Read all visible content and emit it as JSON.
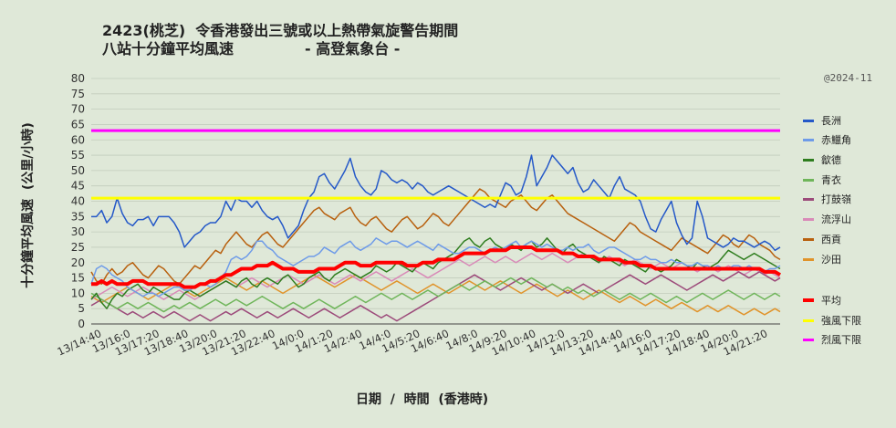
{
  "title_line1": "2423(桃芝)  令香港發出三號或以上熱帶氣旋警告期間",
  "title_line2": "八站十分鐘平均風速              - 高登氣象台 -",
  "watermark": "@2024-11",
  "chart_data": {
    "type": "line",
    "xlabel": "日期  /  時間  (香港時)",
    "ylabel": "十分鐘平均風速  (公里/小時)",
    "ylim": [
      0,
      80
    ],
    "yticks": [
      0,
      5,
      10,
      15,
      20,
      25,
      30,
      35,
      40,
      45,
      50,
      55,
      60,
      65,
      70,
      75,
      80
    ],
    "grid": true,
    "legend": "right",
    "x_tick_labels": [
      "13/14:40",
      "13/16:0",
      "13/17:20",
      "13/18:40",
      "13/20:0",
      "13/21:20",
      "13/22:40",
      "14/0:0",
      "14/1:20",
      "14/2:40",
      "14/4:0",
      "14/5:20",
      "14/6:40",
      "14/8:0",
      "14/9:20",
      "14/10:40",
      "14/12:0",
      "14/13:20",
      "14/14:40",
      "14/16:0",
      "14/17:20",
      "14/18:40",
      "14/20:0",
      "14/21:20"
    ],
    "series": [
      {
        "name": "長洲",
        "color": "#2458c8",
        "values": [
          35,
          35,
          37,
          33,
          35,
          41,
          36,
          33,
          32,
          34,
          34,
          35,
          32,
          35,
          35,
          35,
          33,
          30,
          25,
          27,
          29,
          30,
          32,
          33,
          33,
          35,
          40,
          37,
          41,
          40,
          40,
          38,
          40,
          37,
          35,
          34,
          35,
          32,
          28,
          30,
          32,
          37,
          41,
          43,
          48,
          49,
          46,
          44,
          47,
          50,
          54,
          48,
          45,
          43,
          42,
          44,
          50,
          49,
          47,
          46,
          47,
          46,
          44,
          46,
          45,
          43,
          42,
          43,
          44,
          45,
          44,
          43,
          42,
          41,
          40,
          39,
          38,
          39,
          38,
          42,
          46,
          45,
          42,
          43,
          48,
          55,
          45,
          48,
          51,
          55,
          53,
          51,
          49,
          51,
          46,
          43,
          44,
          47,
          45,
          43,
          41,
          45,
          48,
          44,
          43,
          42,
          40,
          35,
          31,
          30,
          34,
          37,
          40,
          33,
          29,
          26,
          28,
          40,
          35,
          28,
          27,
          26,
          25,
          26,
          28,
          27,
          27,
          26,
          25,
          26,
          27,
          26,
          24,
          25
        ]
      },
      {
        "name": "赤鱲角",
        "color": "#6e9be8",
        "values": [
          13,
          18,
          19,
          18,
          16,
          15,
          14,
          12,
          11,
          10,
          9,
          10,
          10,
          9,
          10,
          11,
          12,
          12,
          11,
          11,
          12,
          13,
          13,
          12,
          13,
          15,
          17,
          21,
          22,
          21,
          22,
          24,
          27,
          27,
          25,
          24,
          22,
          21,
          20,
          19,
          20,
          21,
          22,
          22,
          23,
          25,
          24,
          23,
          25,
          26,
          27,
          25,
          24,
          25,
          26,
          28,
          27,
          26,
          27,
          27,
          26,
          25,
          26,
          27,
          26,
          25,
          24,
          26,
          25,
          24,
          23,
          23,
          24,
          25,
          25,
          24,
          23,
          24,
          25,
          24,
          25,
          26,
          27,
          25,
          26,
          27,
          26,
          25,
          26,
          25,
          24,
          24,
          25,
          24,
          25,
          25,
          26,
          24,
          23,
          24,
          25,
          25,
          24,
          23,
          22,
          21,
          21,
          22,
          21,
          21,
          20,
          20,
          21,
          20,
          20,
          19,
          19,
          20,
          19,
          19,
          18,
          19,
          18,
          18,
          19,
          19,
          18,
          19,
          18,
          18,
          17,
          18,
          18,
          19
        ]
      },
      {
        "name": "歙德",
        "color": "#2e7d1e",
        "values": [
          8,
          10,
          7,
          5,
          8,
          10,
          9,
          11,
          12,
          13,
          11,
          10,
          12,
          11,
          10,
          9,
          8,
          8,
          10,
          11,
          10,
          9,
          10,
          11,
          12,
          13,
          14,
          13,
          12,
          14,
          15,
          13,
          12,
          14,
          15,
          14,
          13,
          15,
          16,
          14,
          12,
          13,
          15,
          16,
          17,
          15,
          14,
          16,
          17,
          18,
          17,
          16,
          15,
          16,
          17,
          19,
          18,
          17,
          18,
          20,
          19,
          18,
          17,
          19,
          20,
          19,
          18,
          20,
          21,
          22,
          23,
          25,
          27,
          28,
          26,
          25,
          27,
          28,
          26,
          25,
          24,
          26,
          25,
          24,
          26,
          27,
          25,
          26,
          28,
          26,
          24,
          23,
          25,
          26,
          24,
          23,
          22,
          21,
          20,
          22,
          21,
          20,
          19,
          21,
          20,
          19,
          18,
          17,
          19,
          18,
          17,
          18,
          19,
          21,
          20,
          19,
          18,
          20,
          19,
          18,
          19,
          20,
          22,
          24,
          23,
          22,
          21,
          22,
          23,
          22,
          21,
          20,
          19,
          18
        ]
      },
      {
        "name": "青衣",
        "color": "#6fb55a",
        "values": [
          10,
          9,
          8,
          7,
          6,
          5,
          6,
          7,
          6,
          5,
          6,
          7,
          6,
          5,
          4,
          5,
          6,
          5,
          6,
          7,
          6,
          5,
          6,
          7,
          8,
          7,
          6,
          7,
          8,
          7,
          6,
          7,
          8,
          9,
          8,
          7,
          6,
          5,
          6,
          7,
          6,
          5,
          6,
          7,
          8,
          7,
          6,
          5,
          6,
          7,
          8,
          9,
          8,
          7,
          8,
          9,
          10,
          9,
          8,
          9,
          10,
          9,
          8,
          9,
          10,
          11,
          10,
          9,
          10,
          11,
          12,
          13,
          12,
          11,
          12,
          13,
          14,
          13,
          12,
          13,
          14,
          15,
          14,
          13,
          14,
          15,
          14,
          13,
          12,
          13,
          12,
          11,
          12,
          11,
          10,
          11,
          10,
          9,
          10,
          11,
          10,
          9,
          8,
          9,
          10,
          9,
          8,
          9,
          10,
          9,
          8,
          7,
          8,
          9,
          8,
          7,
          8,
          9,
          10,
          9,
          8,
          9,
          10,
          11,
          10,
          9,
          8,
          9,
          10,
          9,
          8,
          9,
          10,
          9
        ]
      },
      {
        "name": "打鼓嶺",
        "color": "#9c4a7a",
        "values": [
          6,
          7,
          8,
          7,
          6,
          5,
          4,
          3,
          4,
          3,
          2,
          3,
          4,
          3,
          2,
          3,
          4,
          3,
          2,
          1,
          2,
          3,
          2,
          1,
          2,
          3,
          4,
          3,
          4,
          5,
          4,
          3,
          2,
          3,
          4,
          3,
          2,
          3,
          4,
          5,
          4,
          3,
          2,
          3,
          4,
          5,
          4,
          3,
          2,
          3,
          4,
          5,
          6,
          5,
          4,
          3,
          2,
          3,
          2,
          1,
          2,
          3,
          4,
          5,
          6,
          7,
          8,
          9,
          10,
          11,
          12,
          13,
          14,
          15,
          16,
          15,
          14,
          13,
          12,
          11,
          12,
          13,
          14,
          15,
          14,
          13,
          12,
          11,
          12,
          13,
          12,
          11,
          10,
          11,
          12,
          13,
          12,
          11,
          10,
          11,
          12,
          13,
          14,
          15,
          16,
          15,
          14,
          13,
          14,
          15,
          16,
          15,
          14,
          13,
          12,
          11,
          12,
          13,
          14,
          15,
          16,
          15,
          14,
          15,
          16,
          17,
          16,
          15,
          16,
          17,
          16,
          15,
          14,
          15
        ]
      },
      {
        "name": "流浮山",
        "color": "#d98ab8",
        "values": [
          8,
          9,
          10,
          11,
          12,
          11,
          10,
          9,
          10,
          11,
          12,
          11,
          10,
          9,
          8,
          9,
          10,
          11,
          10,
          9,
          8,
          9,
          10,
          11,
          12,
          13,
          14,
          13,
          12,
          13,
          14,
          15,
          14,
          13,
          12,
          13,
          14,
          15,
          16,
          15,
          14,
          13,
          14,
          15,
          16,
          15,
          14,
          13,
          14,
          15,
          16,
          15,
          14,
          15,
          16,
          17,
          16,
          15,
          14,
          15,
          16,
          17,
          18,
          17,
          16,
          15,
          16,
          17,
          18,
          19,
          20,
          21,
          20,
          19,
          20,
          21,
          22,
          21,
          20,
          21,
          22,
          21,
          20,
          21,
          22,
          23,
          22,
          21,
          22,
          23,
          22,
          21,
          20,
          21,
          22,
          23,
          22,
          21,
          20,
          21,
          22,
          21,
          20,
          19,
          20,
          21,
          20,
          19,
          18,
          19,
          20,
          19,
          18,
          19,
          20,
          19,
          18,
          17,
          18,
          19,
          18,
          17,
          18,
          19,
          18,
          17,
          16,
          17,
          18,
          17,
          16,
          17,
          16,
          15
        ]
      },
      {
        "name": "西貢",
        "color": "#b8600e",
        "values": [
          17,
          14,
          13,
          16,
          18,
          16,
          17,
          19,
          20,
          18,
          16,
          15,
          17,
          19,
          18,
          16,
          14,
          13,
          15,
          17,
          19,
          18,
          20,
          22,
          24,
          23,
          26,
          28,
          30,
          28,
          26,
          25,
          27,
          29,
          30,
          28,
          26,
          25,
          27,
          29,
          31,
          33,
          35,
          37,
          38,
          36,
          35,
          34,
          36,
          37,
          38,
          35,
          33,
          32,
          34,
          35,
          33,
          31,
          30,
          32,
          34,
          35,
          33,
          31,
          32,
          34,
          36,
          35,
          33,
          32,
          34,
          36,
          38,
          40,
          42,
          44,
          43,
          41,
          40,
          39,
          38,
          40,
          41,
          42,
          40,
          38,
          37,
          39,
          41,
          42,
          40,
          38,
          36,
          35,
          34,
          33,
          32,
          31,
          30,
          29,
          28,
          27,
          29,
          31,
          33,
          32,
          30,
          29,
          28,
          27,
          26,
          25,
          24,
          26,
          28,
          27,
          26,
          25,
          24,
          23,
          25,
          27,
          29,
          28,
          26,
          25,
          27,
          29,
          28,
          26,
          25,
          24,
          22,
          21
        ]
      },
      {
        "name": "沙田",
        "color": "#e0932a",
        "values": [
          9,
          8,
          7,
          8,
          9,
          10,
          11,
          12,
          11,
          10,
          9,
          8,
          9,
          10,
          11,
          12,
          13,
          12,
          11,
          10,
          9,
          10,
          11,
          12,
          13,
          14,
          15,
          14,
          13,
          12,
          11,
          12,
          13,
          14,
          13,
          12,
          11,
          10,
          11,
          12,
          13,
          14,
          15,
          16,
          15,
          14,
          13,
          12,
          13,
          14,
          15,
          16,
          15,
          14,
          13,
          12,
          11,
          12,
          13,
          14,
          13,
          12,
          11,
          10,
          11,
          12,
          13,
          12,
          11,
          10,
          11,
          12,
          13,
          14,
          13,
          12,
          11,
          12,
          13,
          14,
          13,
          12,
          11,
          10,
          11,
          12,
          13,
          12,
          11,
          10,
          9,
          10,
          11,
          10,
          9,
          8,
          9,
          10,
          11,
          10,
          9,
          8,
          7,
          8,
          9,
          8,
          7,
          6,
          7,
          8,
          7,
          6,
          5,
          6,
          7,
          6,
          5,
          4,
          5,
          6,
          5,
          4,
          5,
          6,
          5,
          4,
          3,
          4,
          5,
          4,
          3,
          4,
          5,
          4
        ]
      },
      {
        "name": "平均",
        "color": "#ff0000",
        "values": [
          13,
          13,
          14,
          13,
          14,
          13,
          13,
          13,
          14,
          14,
          14,
          13,
          13,
          13,
          13,
          13,
          13,
          13,
          12,
          12,
          12,
          13,
          13,
          14,
          14,
          15,
          16,
          16,
          17,
          18,
          18,
          18,
          19,
          19,
          19,
          20,
          19,
          18,
          18,
          18,
          17,
          17,
          17,
          17,
          18,
          18,
          18,
          18,
          19,
          20,
          20,
          20,
          19,
          19,
          19,
          20,
          20,
          20,
          20,
          20,
          20,
          19,
          19,
          19,
          20,
          20,
          20,
          21,
          21,
          21,
          21,
          22,
          23,
          23,
          23,
          23,
          23,
          24,
          24,
          24,
          24,
          25,
          25,
          25,
          25,
          25,
          24,
          24,
          24,
          24,
          24,
          23,
          23,
          23,
          22,
          22,
          22,
          22,
          21,
          21,
          21,
          21,
          21,
          20,
          20,
          20,
          19,
          19,
          19,
          18,
          18,
          18,
          18,
          18,
          18,
          18,
          18,
          18,
          18,
          18,
          18,
          18,
          18,
          18,
          18,
          18,
          18,
          18,
          18,
          18,
          17,
          17,
          17,
          16
        ]
      },
      {
        "name": "強風下限",
        "color": "#ffff00",
        "values": [
          41,
          41
        ]
      },
      {
        "name": "烈風下限",
        "color": "#ff00ff",
        "values": [
          63,
          63
        ]
      }
    ]
  }
}
